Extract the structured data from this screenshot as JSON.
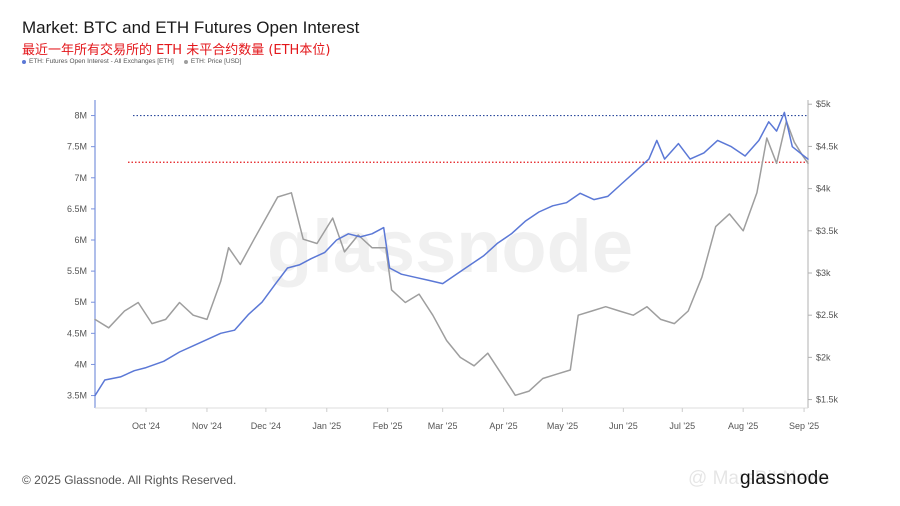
{
  "header": {
    "title": "Market: BTC and ETH Futures Open Interest",
    "subtitle": "最近一年所有交易所的 ETH 未平合约数量 (ETH本位)"
  },
  "footer": {
    "copyright": "© 2025 Glassnode. All Rights Reserved.",
    "brand": "glassnode",
    "overlay_watermark": "@ MarsBit News"
  },
  "colors": {
    "oi_line": "#5b78d6",
    "price_line": "#9e9e9e",
    "ref_top": "#2c4a9c",
    "ref_bottom": "#e3171b"
  },
  "chart_data": {
    "type": "line",
    "title": "Market: BTC and ETH Futures Open Interest",
    "watermark": "glassnode",
    "legend_position": "top-left",
    "grid": false,
    "x_ticks": [
      "Oct '24",
      "Nov '24",
      "Dec '24",
      "Jan '25",
      "Feb '25",
      "Mar '25",
      "Apr '25",
      "May '25",
      "Jun '25",
      "Jul '25",
      "Aug '25",
      "Sep '25"
    ],
    "x_range": [
      "2024-09-05",
      "2025-09-03"
    ],
    "y_left": {
      "ticks": [
        "3.5M",
        "4M",
        "4.5M",
        "5M",
        "5.5M",
        "6M",
        "6.5M",
        "7M",
        "7.5M",
        "8M"
      ],
      "range": [
        3.3,
        8.25
      ],
      "unit": "M ETH"
    },
    "y_right": {
      "ticks": [
        "$1.5k",
        "$2k",
        "$2.5k",
        "$3k",
        "$3.5k",
        "$4k",
        "$4.5k",
        "$5k"
      ],
      "range": [
        1400,
        5050
      ],
      "unit": "USD"
    },
    "reference_lines": [
      {
        "axis": "left",
        "value": 8.0,
        "color": "#2c4a9c",
        "style": "dotted"
      },
      {
        "axis": "left",
        "value": 7.25,
        "color": "#e3171b",
        "style": "dotted"
      }
    ],
    "series": [
      {
        "name": "ETH: Futures Open Interest - All Exchanges [ETH]",
        "axis": "left",
        "points": [
          [
            "2024-09-05",
            3.5
          ],
          [
            "2024-09-10",
            3.75
          ],
          [
            "2024-09-18",
            3.8
          ],
          [
            "2024-09-25",
            3.9
          ],
          [
            "2024-10-01",
            3.95
          ],
          [
            "2024-10-10",
            4.05
          ],
          [
            "2024-10-18",
            4.2
          ],
          [
            "2024-10-25",
            4.3
          ],
          [
            "2024-11-01",
            4.4
          ],
          [
            "2024-11-08",
            4.5
          ],
          [
            "2024-11-15",
            4.55
          ],
          [
            "2024-11-22",
            4.8
          ],
          [
            "2024-11-29",
            5.0
          ],
          [
            "2024-12-06",
            5.3
          ],
          [
            "2024-12-12",
            5.55
          ],
          [
            "2024-12-18",
            5.6
          ],
          [
            "2024-12-24",
            5.7
          ],
          [
            "2024-12-31",
            5.8
          ],
          [
            "2025-01-06",
            6.0
          ],
          [
            "2025-01-12",
            6.1
          ],
          [
            "2025-01-18",
            6.05
          ],
          [
            "2025-01-24",
            6.1
          ],
          [
            "2025-01-30",
            6.2
          ],
          [
            "2025-02-02",
            5.55
          ],
          [
            "2025-02-08",
            5.45
          ],
          [
            "2025-02-15",
            5.4
          ],
          [
            "2025-02-22",
            5.35
          ],
          [
            "2025-03-01",
            5.3
          ],
          [
            "2025-03-08",
            5.45
          ],
          [
            "2025-03-15",
            5.6
          ],
          [
            "2025-03-22",
            5.75
          ],
          [
            "2025-03-29",
            5.95
          ],
          [
            "2025-04-05",
            6.1
          ],
          [
            "2025-04-12",
            6.3
          ],
          [
            "2025-04-19",
            6.45
          ],
          [
            "2025-04-26",
            6.55
          ],
          [
            "2025-05-03",
            6.6
          ],
          [
            "2025-05-10",
            6.75
          ],
          [
            "2025-05-17",
            6.65
          ],
          [
            "2025-05-24",
            6.7
          ],
          [
            "2025-05-31",
            6.9
          ],
          [
            "2025-06-07",
            7.1
          ],
          [
            "2025-06-14",
            7.3
          ],
          [
            "2025-06-18",
            7.6
          ],
          [
            "2025-06-22",
            7.3
          ],
          [
            "2025-06-29",
            7.55
          ],
          [
            "2025-07-05",
            7.3
          ],
          [
            "2025-07-12",
            7.4
          ],
          [
            "2025-07-19",
            7.6
          ],
          [
            "2025-07-26",
            7.5
          ],
          [
            "2025-08-02",
            7.35
          ],
          [
            "2025-08-09",
            7.6
          ],
          [
            "2025-08-14",
            7.9
          ],
          [
            "2025-08-18",
            7.75
          ],
          [
            "2025-08-22",
            8.05
          ],
          [
            "2025-08-26",
            7.5
          ],
          [
            "2025-08-30",
            7.4
          ],
          [
            "2025-09-03",
            7.3
          ]
        ]
      },
      {
        "name": "ETH: Price [USD]",
        "axis": "right",
        "points": [
          [
            "2024-09-05",
            2450
          ],
          [
            "2024-09-12",
            2350
          ],
          [
            "2024-09-20",
            2550
          ],
          [
            "2024-09-27",
            2650
          ],
          [
            "2024-10-04",
            2400
          ],
          [
            "2024-10-11",
            2450
          ],
          [
            "2024-10-18",
            2650
          ],
          [
            "2024-10-25",
            2500
          ],
          [
            "2024-11-01",
            2450
          ],
          [
            "2024-11-08",
            2900
          ],
          [
            "2024-11-12",
            3300
          ],
          [
            "2024-11-18",
            3100
          ],
          [
            "2024-11-25",
            3400
          ],
          [
            "2024-12-01",
            3650
          ],
          [
            "2024-12-07",
            3900
          ],
          [
            "2024-12-14",
            3950
          ],
          [
            "2024-12-20",
            3400
          ],
          [
            "2024-12-27",
            3350
          ],
          [
            "2025-01-04",
            3650
          ],
          [
            "2025-01-10",
            3250
          ],
          [
            "2025-01-17",
            3450
          ],
          [
            "2025-01-24",
            3300
          ],
          [
            "2025-01-31",
            3300
          ],
          [
            "2025-02-03",
            2800
          ],
          [
            "2025-02-10",
            2650
          ],
          [
            "2025-02-17",
            2750
          ],
          [
            "2025-02-24",
            2500
          ],
          [
            "2025-03-03",
            2200
          ],
          [
            "2025-03-10",
            2000
          ],
          [
            "2025-03-17",
            1900
          ],
          [
            "2025-03-24",
            2050
          ],
          [
            "2025-03-31",
            1800
          ],
          [
            "2025-04-07",
            1550
          ],
          [
            "2025-04-14",
            1600
          ],
          [
            "2025-04-21",
            1750
          ],
          [
            "2025-04-28",
            1800
          ],
          [
            "2025-05-05",
            1850
          ],
          [
            "2025-05-09",
            2500
          ],
          [
            "2025-05-16",
            2550
          ],
          [
            "2025-05-23",
            2600
          ],
          [
            "2025-05-30",
            2550
          ],
          [
            "2025-06-06",
            2500
          ],
          [
            "2025-06-13",
            2600
          ],
          [
            "2025-06-20",
            2450
          ],
          [
            "2025-06-27",
            2400
          ],
          [
            "2025-07-04",
            2550
          ],
          [
            "2025-07-11",
            2950
          ],
          [
            "2025-07-18",
            3550
          ],
          [
            "2025-07-25",
            3700
          ],
          [
            "2025-08-01",
            3500
          ],
          [
            "2025-08-08",
            3950
          ],
          [
            "2025-08-13",
            4600
          ],
          [
            "2025-08-18",
            4300
          ],
          [
            "2025-08-23",
            4800
          ],
          [
            "2025-08-27",
            4550
          ],
          [
            "2025-08-31",
            4400
          ],
          [
            "2025-09-03",
            4300
          ]
        ]
      }
    ]
  }
}
